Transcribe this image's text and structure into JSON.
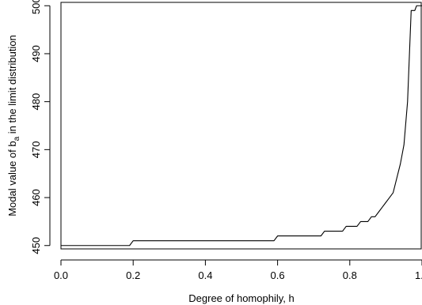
{
  "chart_data": {
    "type": "line",
    "title": "",
    "xlabel": "Degree of homophily, h",
    "ylabel": {
      "prefix": "Modal value of b",
      "subscript": "a",
      "suffix": " in the limit distribution"
    },
    "xlim": [
      0.0,
      1.0
    ],
    "ylim": [
      449.3,
      500.7
    ],
    "xticks": [
      0.0,
      0.2,
      0.4,
      0.6,
      0.8,
      1.0
    ],
    "xtick_labels": [
      "0.0",
      "0.2",
      "0.4",
      "0.6",
      "0.8",
      "1.0"
    ],
    "yticks": [
      450,
      460,
      470,
      480,
      490,
      500
    ],
    "ytick_labels": [
      "450",
      "460",
      "470",
      "480",
      "490",
      "500"
    ],
    "grid": false,
    "line_color": "#000000",
    "series": [
      {
        "x": [
          0.0,
          0.19,
          0.2,
          0.3,
          0.4,
          0.5,
          0.59,
          0.6,
          0.7,
          0.72,
          0.73,
          0.77,
          0.78,
          0.79,
          0.82,
          0.83,
          0.84,
          0.85,
          0.86,
          0.87,
          0.88,
          0.89,
          0.9,
          0.91,
          0.92,
          0.93,
          0.94,
          0.95,
          0.96,
          0.97,
          0.98,
          0.985,
          0.99,
          1.0
        ],
        "y": [
          450,
          450,
          451,
          451,
          451,
          451,
          451,
          452,
          452,
          452,
          453,
          453,
          453,
          454,
          454,
          455,
          455,
          455,
          456,
          456,
          457,
          458,
          459,
          460,
          461,
          464,
          467,
          471,
          480,
          499,
          499,
          500,
          500,
          500
        ]
      }
    ]
  }
}
